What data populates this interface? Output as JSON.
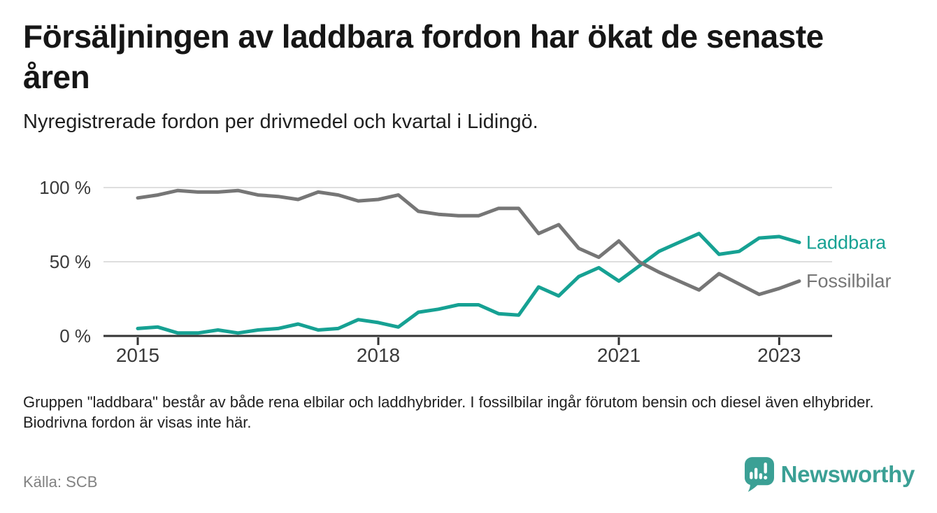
{
  "header": {
    "title": "Försäljningen av laddbara fordon har ökat de senaste åren",
    "subtitle": "Nyregistrerade fordon per drivmedel och kvartal i Lidingö."
  },
  "chart_data": {
    "type": "line",
    "title": "Försäljningen av laddbara fordon har ökat de senaste åren",
    "subtitle": "Nyregistrerade fordon per drivmedel och kvartal i Lidingö.",
    "x_unit": "quarter",
    "x": [
      "2015K1",
      "2015K2",
      "2015K3",
      "2015K4",
      "2016K1",
      "2016K2",
      "2016K3",
      "2016K4",
      "2017K1",
      "2017K2",
      "2017K3",
      "2017K4",
      "2018K1",
      "2018K2",
      "2018K3",
      "2018K4",
      "2019K1",
      "2019K2",
      "2019K3",
      "2019K4",
      "2020K1",
      "2020K2",
      "2020K3",
      "2020K4",
      "2021K1",
      "2021K2",
      "2021K3",
      "2021K4",
      "2022K1",
      "2022K2",
      "2022K3",
      "2022K4",
      "2023K1",
      "2023K2"
    ],
    "series": [
      {
        "name": "Laddbara",
        "color": "#16a193",
        "values": [
          5,
          6,
          2,
          2,
          4,
          2,
          4,
          5,
          8,
          4,
          5,
          11,
          9,
          6,
          16,
          18,
          21,
          21,
          15,
          14,
          33,
          27,
          40,
          46,
          37,
          47,
          57,
          63,
          69,
          55,
          57,
          66,
          67,
          63
        ]
      },
      {
        "name": "Fossilbilar",
        "color": "#767676",
        "values": [
          93,
          95,
          98,
          97,
          97,
          98,
          95,
          94,
          92,
          97,
          95,
          91,
          92,
          95,
          84,
          82,
          81,
          81,
          86,
          86,
          69,
          75,
          59,
          53,
          64,
          50,
          43,
          37,
          31,
          42,
          35,
          28,
          32,
          37
        ]
      }
    ],
    "ylim": [
      0,
      100
    ],
    "yticks": [
      {
        "value": 0,
        "label": "0 %"
      },
      {
        "value": 50,
        "label": "50 %"
      },
      {
        "value": 100,
        "label": "100 %"
      }
    ],
    "xticks": [
      {
        "index": 0,
        "label": "2015"
      },
      {
        "index": 12,
        "label": "2018"
      },
      {
        "index": 24,
        "label": "2021"
      },
      {
        "index": 32,
        "label": "2023"
      }
    ],
    "grid": "horizontal",
    "legend": "line-end-labels",
    "axis_color": "#333333",
    "grid_color": "#dedede",
    "tick_label_color": "#3a3a3a"
  },
  "footnote": "Gruppen \"laddbara\" består av både rena elbilar och laddhybrider. I fossilbilar ingår förutom bensin och diesel även elhybrider. Biodrivna fordon är visas inte här.",
  "source": "Källa: SCB",
  "branding": {
    "logo_text": "Newsworthy",
    "logo_color": "#3ba095"
  }
}
